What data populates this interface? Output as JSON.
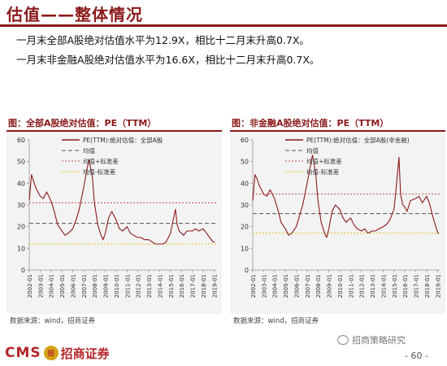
{
  "header": {
    "title": "估值——整体情况",
    "lines": [
      "一月末全部A股绝对估值水平为12.9X，相比十二月末升高0.7X。",
      "一月末非金融A股绝对估值水平为16.6X，相比十二月末升高0.7X。"
    ]
  },
  "colors": {
    "brand": "#8b1a1a",
    "series": "#8b1a1a",
    "mean": "#555555",
    "plus_sd": "#c0504d",
    "minus_sd": "#e0c020"
  },
  "chart_data": [
    {
      "type": "line",
      "title": "图：全部A股绝对估值：PE（TTM）",
      "source": "数据来源：wind，招商证券",
      "ylim": [
        0,
        60
      ],
      "yticks": [
        0,
        10,
        20,
        30,
        40,
        50,
        60
      ],
      "xticks": [
        "2002-01",
        "2003-01",
        "2004-01",
        "2005-01",
        "2006-01",
        "2007-01",
        "2008-01",
        "2009-01",
        "2010-01",
        "2011-01",
        "2012-01",
        "2013-01",
        "2014-01",
        "2015-01",
        "2016-01",
        "2017-01",
        "2018-01",
        "2019-01"
      ],
      "legend": [
        "PE(TTM):绝对估值：全部A股",
        "均值",
        "均值+标准差",
        "均值-标准差"
      ],
      "legend_position": "top-right",
      "series": [
        {
          "name": "PE(TTM):绝对估值：全部A股",
          "x": [
            2002.0,
            2002.2,
            2002.4,
            2002.6,
            2002.8,
            2003.0,
            2003.3,
            2003.6,
            2004.0,
            2004.3,
            2004.6,
            2005.0,
            2005.3,
            2005.6,
            2006.0,
            2006.3,
            2006.6,
            2007.0,
            2007.3,
            2007.5,
            2007.8,
            2008.0,
            2008.3,
            2008.6,
            2008.8,
            2009.0,
            2009.3,
            2009.6,
            2010.0,
            2010.3,
            2010.6,
            2011.0,
            2011.3,
            2011.6,
            2012.0,
            2012.3,
            2012.6,
            2013.0,
            2013.3,
            2013.6,
            2014.0,
            2014.3,
            2014.6,
            2015.0,
            2015.2,
            2015.45,
            2015.6,
            2015.8,
            2016.0,
            2016.2,
            2016.5,
            2017.0,
            2017.3,
            2017.6,
            2018.0,
            2018.3,
            2018.6,
            2018.9,
            2019.08
          ],
          "values": [
            32,
            44,
            41,
            38,
            36,
            34,
            33,
            36,
            32,
            27,
            21,
            18,
            16,
            17,
            19,
            23,
            28,
            38,
            46,
            51,
            43,
            31,
            21,
            16,
            14,
            17,
            24,
            27,
            23,
            19,
            18,
            20,
            17,
            16,
            15,
            15,
            14,
            14,
            13,
            12,
            12,
            12,
            13,
            17,
            22,
            28,
            21,
            18,
            17,
            16,
            18,
            18,
            19,
            18,
            19,
            17,
            15,
            13,
            12.9
          ]
        }
      ],
      "mean": 21.5,
      "mean_plus_sd": 31,
      "mean_minus_sd": 12
    },
    {
      "type": "line",
      "title": "图：非金融A股绝对估值：PE（TTM）",
      "source": "数据来源：wind，招商证券",
      "ylim": [
        0,
        60
      ],
      "yticks": [
        0,
        10,
        20,
        30,
        40,
        50,
        60
      ],
      "xticks": [
        "2002-01",
        "2003-01",
        "2004-01",
        "2005-01",
        "2006-01",
        "2007-01",
        "2008-01",
        "2009-01",
        "2010-01",
        "2011-01",
        "2012-01",
        "2013-01",
        "2014-01",
        "2015-01",
        "2016-01",
        "2017-01",
        "2018-01",
        "2019-01"
      ],
      "legend": [
        "PE(TTM):绝对估值：全部A股(非金融)",
        "均值",
        "均值+标准差",
        "均值-标准差"
      ],
      "legend_position": "top-right",
      "series": [
        {
          "name": "PE(TTM):绝对估值：全部A股(非金融)",
          "x": [
            2002.0,
            2002.2,
            2002.4,
            2002.6,
            2002.8,
            2003.0,
            2003.3,
            2003.6,
            2004.0,
            2004.3,
            2004.6,
            2005.0,
            2005.3,
            2005.6,
            2006.0,
            2006.3,
            2006.6,
            2007.0,
            2007.3,
            2007.5,
            2007.8,
            2008.0,
            2008.3,
            2008.6,
            2008.8,
            2009.0,
            2009.3,
            2009.6,
            2010.0,
            2010.3,
            2010.6,
            2011.0,
            2011.3,
            2011.6,
            2012.0,
            2012.3,
            2012.6,
            2013.0,
            2013.3,
            2013.6,
            2014.0,
            2014.3,
            2014.6,
            2015.0,
            2015.2,
            2015.45,
            2015.6,
            2015.8,
            2016.0,
            2016.2,
            2016.5,
            2017.0,
            2017.3,
            2017.6,
            2018.0,
            2018.3,
            2018.6,
            2018.9,
            2019.08
          ],
          "values": [
            32,
            44,
            42,
            39,
            37,
            35,
            34,
            37,
            33,
            28,
            22,
            19,
            16,
            17,
            20,
            25,
            30,
            40,
            48,
            53,
            44,
            32,
            22,
            17,
            15,
            19,
            27,
            30,
            28,
            24,
            22,
            24,
            21,
            19,
            18,
            19,
            17,
            18,
            18,
            19,
            20,
            21,
            23,
            28,
            38,
            52,
            35,
            30,
            29,
            27,
            32,
            33,
            34,
            31,
            34,
            30,
            24,
            19,
            16.6
          ]
        }
      ],
      "mean": 26,
      "mean_plus_sd": 35,
      "mean_minus_sd": 17
    }
  ],
  "footer": {
    "logo_text": "CMS",
    "logo_badge": "招",
    "logo_name": "招商证券",
    "watermark": "招商策略研究",
    "page": "- 60 -"
  }
}
